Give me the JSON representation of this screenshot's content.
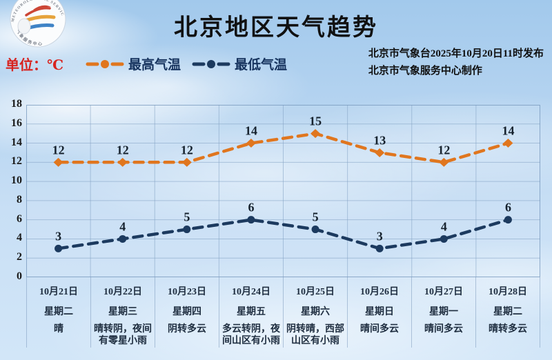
{
  "header": {
    "title": "北京地区天气趋势",
    "unit_label": "单位：℃",
    "publisher_line1": "北京市气象台2025年10月20日11时发布",
    "publisher_line2": "北京市气象服务中心制作",
    "logo_name": "beijing-meteorological-service-logo"
  },
  "legend": [
    {
      "label": "最高气温",
      "color": "#e0761e"
    },
    {
      "label": "最低气温",
      "color": "#1c3a5f"
    }
  ],
  "colors": {
    "high_line": "#e0761e",
    "low_line": "#1c3a5f",
    "unit_red": "#d8231f",
    "grid": "rgba(130,160,195,0.55)",
    "plot_border": "rgba(115,148,185,0.75)",
    "value_label": "#16222e"
  },
  "chart_data": {
    "type": "line",
    "title": "北京地区天气趋势",
    "ylabel": "℃",
    "ylim": [
      0,
      18
    ],
    "ytick_step": 2,
    "grid": true,
    "legend_position": "top-left",
    "categories": [
      {
        "date": "10月21日",
        "weekday": "星期二",
        "weather": "晴"
      },
      {
        "date": "10月22日",
        "weekday": "星期三",
        "weather": "晴转阴，夜间有零星小雨"
      },
      {
        "date": "10月23日",
        "weekday": "星期四",
        "weather": "阴转多云"
      },
      {
        "date": "10月24日",
        "weekday": "星期五",
        "weather": "多云转阴，夜间山区有小雨"
      },
      {
        "date": "10月25日",
        "weekday": "星期六",
        "weather": "阴转晴，西部山区有小雨"
      },
      {
        "date": "10月26日",
        "weekday": "星期日",
        "weather": "晴间多云"
      },
      {
        "date": "10月27日",
        "weekday": "星期一",
        "weather": "晴间多云"
      },
      {
        "date": "10月28日",
        "weekday": "星期二",
        "weather": "晴转多云"
      }
    ],
    "series": [
      {
        "name": "最高气温",
        "color": "#e0761e",
        "marker": "diamond",
        "values": [
          12,
          12,
          12,
          14,
          15,
          13,
          12,
          14
        ]
      },
      {
        "name": "最低气温",
        "color": "#1c3a5f",
        "marker": "circle",
        "values": [
          3,
          4,
          5,
          6,
          5,
          3,
          4,
          6
        ]
      }
    ]
  }
}
